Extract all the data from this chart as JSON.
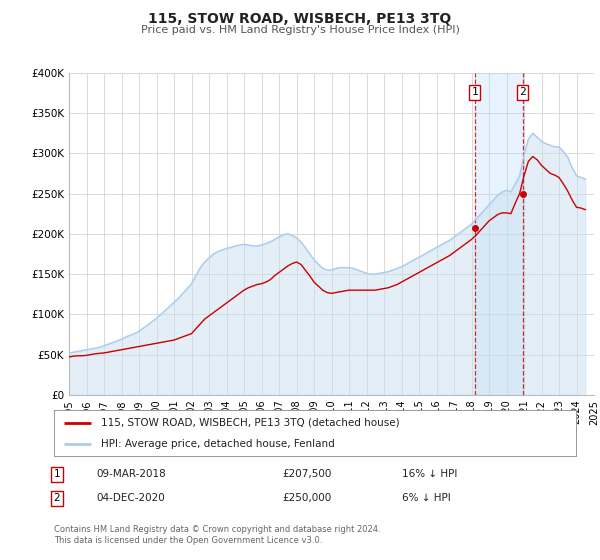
{
  "title": "115, STOW ROAD, WISBECH, PE13 3TQ",
  "subtitle": "Price paid vs. HM Land Registry's House Price Index (HPI)",
  "background_color": "#ffffff",
  "plot_bg_color": "#ffffff",
  "grid_color": "#cccccc",
  "hpi_color": "#aaccee",
  "hpi_fill_color": "#c8dff0",
  "price_color": "#cc0000",
  "highlight_bg_color": "#ddeeff",
  "marker1_date_x": 2018.18,
  "marker2_date_x": 2020.92,
  "marker1_y": 207500,
  "marker2_y": 250000,
  "sale1_label": "09-MAR-2018",
  "sale1_price": "£207,500",
  "sale1_hpi": "16% ↓ HPI",
  "sale2_label": "04-DEC-2020",
  "sale2_price": "£250,000",
  "sale2_hpi": "6% ↓ HPI",
  "legend_line1": "115, STOW ROAD, WISBECH, PE13 3TQ (detached house)",
  "legend_line2": "HPI: Average price, detached house, Fenland",
  "footer": "Contains HM Land Registry data © Crown copyright and database right 2024.\nThis data is licensed under the Open Government Licence v3.0.",
  "ylim": [
    0,
    400000
  ],
  "xlim": [
    1995,
    2025
  ],
  "yticks": [
    0,
    50000,
    100000,
    150000,
    200000,
    250000,
    300000,
    350000,
    400000
  ],
  "ytick_labels": [
    "£0",
    "£50K",
    "£100K",
    "£150K",
    "£200K",
    "£250K",
    "£300K",
    "£350K",
    "£400K"
  ],
  "hpi_x": [
    1995.0,
    1995.25,
    1995.5,
    1995.75,
    1996.0,
    1996.25,
    1996.5,
    1996.75,
    1997.0,
    1997.25,
    1997.5,
    1997.75,
    1998.0,
    1998.25,
    1998.5,
    1998.75,
    1999.0,
    1999.25,
    1999.5,
    1999.75,
    2000.0,
    2000.25,
    2000.5,
    2000.75,
    2001.0,
    2001.25,
    2001.5,
    2001.75,
    2002.0,
    2002.25,
    2002.5,
    2002.75,
    2003.0,
    2003.25,
    2003.5,
    2003.75,
    2004.0,
    2004.25,
    2004.5,
    2004.75,
    2005.0,
    2005.25,
    2005.5,
    2005.75,
    2006.0,
    2006.25,
    2006.5,
    2006.75,
    2007.0,
    2007.25,
    2007.5,
    2007.75,
    2008.0,
    2008.25,
    2008.5,
    2008.75,
    2009.0,
    2009.25,
    2009.5,
    2009.75,
    2010.0,
    2010.25,
    2010.5,
    2010.75,
    2011.0,
    2011.25,
    2011.5,
    2011.75,
    2012.0,
    2012.25,
    2012.5,
    2012.75,
    2013.0,
    2013.25,
    2013.5,
    2013.75,
    2014.0,
    2014.25,
    2014.5,
    2014.75,
    2015.0,
    2015.25,
    2015.5,
    2015.75,
    2016.0,
    2016.25,
    2016.5,
    2016.75,
    2017.0,
    2017.25,
    2017.5,
    2017.75,
    2018.0,
    2018.25,
    2018.5,
    2018.75,
    2019.0,
    2019.25,
    2019.5,
    2019.75,
    2020.0,
    2020.25,
    2020.5,
    2020.75,
    2021.0,
    2021.25,
    2021.5,
    2021.75,
    2022.0,
    2022.25,
    2022.5,
    2022.75,
    2023.0,
    2023.25,
    2023.5,
    2023.75,
    2024.0,
    2024.25,
    2024.5
  ],
  "hpi_y": [
    52000,
    53000,
    54000,
    55000,
    56000,
    57000,
    58000,
    59000,
    61000,
    63000,
    65000,
    67000,
    69000,
    72000,
    74000,
    76000,
    79000,
    83000,
    87000,
    91000,
    95000,
    100000,
    105000,
    110000,
    115000,
    120000,
    126000,
    132000,
    138000,
    148000,
    158000,
    165000,
    170000,
    175000,
    178000,
    180000,
    182000,
    183000,
    185000,
    186000,
    187000,
    186000,
    185000,
    185000,
    186000,
    188000,
    190000,
    193000,
    196000,
    199000,
    200000,
    198000,
    195000,
    190000,
    183000,
    175000,
    168000,
    162000,
    157000,
    155000,
    155000,
    157000,
    158000,
    158000,
    158000,
    157000,
    155000,
    153000,
    151000,
    150000,
    150000,
    151000,
    152000,
    153000,
    155000,
    157000,
    159000,
    162000,
    165000,
    168000,
    171000,
    174000,
    177000,
    180000,
    183000,
    186000,
    189000,
    192000,
    196000,
    200000,
    204000,
    208000,
    212000,
    218000,
    224000,
    230000,
    236000,
    242000,
    248000,
    252000,
    254000,
    252000,
    262000,
    272000,
    298000,
    318000,
    325000,
    320000,
    315000,
    312000,
    310000,
    308000,
    308000,
    302000,
    295000,
    282000,
    272000,
    270000,
    268000
  ],
  "price_x": [
    1995.0,
    1995.25,
    1995.5,
    1995.75,
    1996.0,
    1996.25,
    1996.5,
    1996.75,
    1997.0,
    1997.25,
    1997.5,
    1997.75,
    1998.0,
    1998.25,
    1998.5,
    1998.75,
    1999.0,
    1999.25,
    1999.5,
    1999.75,
    2000.0,
    2000.25,
    2000.5,
    2000.75,
    2001.0,
    2001.25,
    2001.5,
    2001.75,
    2002.0,
    2002.25,
    2002.5,
    2002.75,
    2003.0,
    2003.25,
    2003.5,
    2003.75,
    2004.0,
    2004.25,
    2004.5,
    2004.75,
    2005.0,
    2005.25,
    2005.5,
    2005.75,
    2006.0,
    2006.25,
    2006.5,
    2006.75,
    2007.0,
    2007.25,
    2007.5,
    2007.75,
    2008.0,
    2008.25,
    2008.5,
    2008.75,
    2009.0,
    2009.25,
    2009.5,
    2009.75,
    2010.0,
    2010.25,
    2010.5,
    2010.75,
    2011.0,
    2011.25,
    2011.5,
    2011.75,
    2012.0,
    2012.25,
    2012.5,
    2012.75,
    2013.0,
    2013.25,
    2013.5,
    2013.75,
    2014.0,
    2014.25,
    2014.5,
    2014.75,
    2015.0,
    2015.25,
    2015.5,
    2015.75,
    2016.0,
    2016.25,
    2016.5,
    2016.75,
    2017.0,
    2017.25,
    2017.5,
    2017.75,
    2018.0,
    2018.25,
    2018.5,
    2018.75,
    2019.0,
    2019.25,
    2019.5,
    2019.75,
    2020.0,
    2020.25,
    2020.5,
    2020.75,
    2021.0,
    2021.25,
    2021.5,
    2021.75,
    2022.0,
    2022.25,
    2022.5,
    2022.75,
    2023.0,
    2023.25,
    2023.5,
    2023.75,
    2024.0,
    2024.25,
    2024.5
  ],
  "price_y": [
    47000,
    48000,
    48500,
    48500,
    49000,
    50000,
    51000,
    51500,
    52000,
    53000,
    54000,
    55000,
    56000,
    57000,
    58000,
    59000,
    60000,
    61000,
    62000,
    63000,
    64000,
    65000,
    66000,
    67000,
    68000,
    70000,
    72000,
    74000,
    76000,
    82000,
    88000,
    94000,
    98000,
    102000,
    106000,
    110000,
    114000,
    118000,
    122000,
    126000,
    130000,
    133000,
    135000,
    137000,
    138000,
    140000,
    143000,
    148000,
    152000,
    156000,
    160000,
    163000,
    165000,
    162000,
    155000,
    148000,
    140000,
    135000,
    130000,
    127000,
    126000,
    127000,
    128000,
    129000,
    130000,
    130000,
    130000,
    130000,
    130000,
    130000,
    130000,
    131000,
    132000,
    133000,
    135000,
    137000,
    140000,
    143000,
    146000,
    149000,
    152000,
    155000,
    158000,
    161000,
    164000,
    167000,
    170000,
    173000,
    177000,
    181000,
    185000,
    189000,
    193000,
    198000,
    204000,
    210000,
    216000,
    220000,
    224000,
    226000,
    226000,
    225000,
    238000,
    250000,
    272000,
    290000,
    296000,
    292000,
    285000,
    280000,
    275000,
    273000,
    270000,
    262000,
    253000,
    242000,
    233000,
    232000,
    230000
  ]
}
